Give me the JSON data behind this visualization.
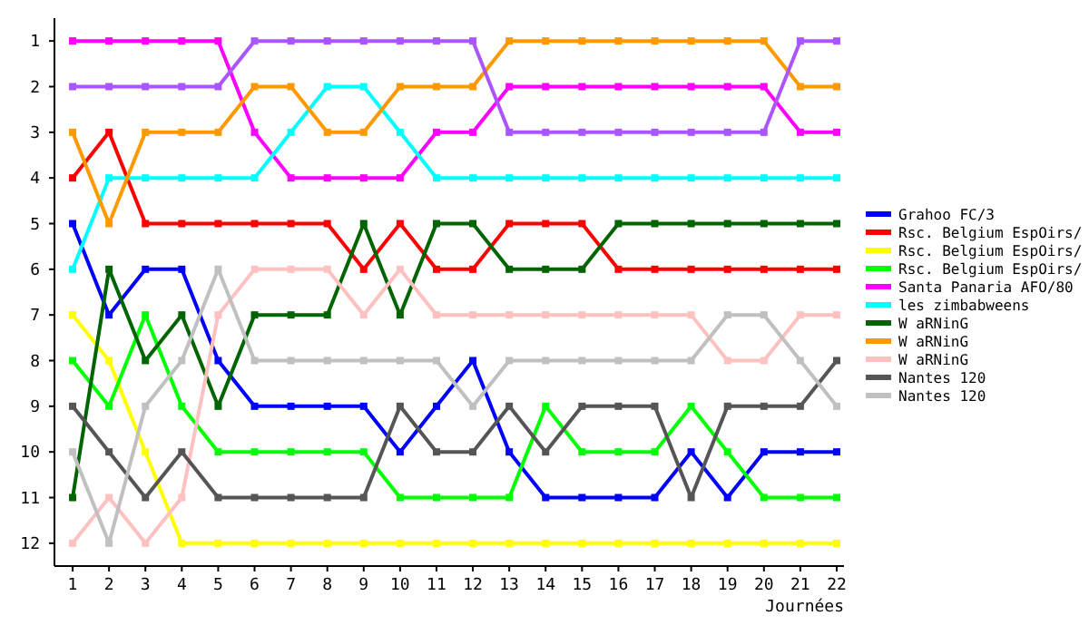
{
  "chart_data": {
    "type": "line",
    "xlabel": "Journées",
    "x": [
      1,
      2,
      3,
      4,
      5,
      6,
      7,
      8,
      9,
      10,
      11,
      12,
      13,
      14,
      15,
      16,
      17,
      18,
      19,
      20,
      21,
      22
    ],
    "xlim": [
      0.5,
      22.2
    ],
    "xticks": [
      1,
      2,
      3,
      4,
      5,
      6,
      7,
      8,
      9,
      10,
      11,
      12,
      13,
      14,
      15,
      16,
      17,
      18,
      19,
      20,
      21,
      22
    ],
    "ylim": [
      12.5,
      0.5
    ],
    "yticks": [
      1,
      2,
      3,
      4,
      5,
      6,
      7,
      8,
      9,
      10,
      11,
      12
    ],
    "grid": false,
    "legend": "right",
    "marker": "square",
    "line_style": "solid",
    "series": [
      {
        "name": "Grahoo FC/3",
        "color": "#0000ff",
        "values": [
          5,
          7,
          6,
          6,
          8,
          9,
          9,
          9,
          9,
          10,
          9,
          8,
          10,
          11,
          11,
          11,
          11,
          10,
          11,
          10,
          10,
          10
        ]
      },
      {
        "name": "Rsc. Belgium EspOirs/",
        "color": "#ff0000",
        "values": [
          4,
          3,
          5,
          5,
          5,
          5,
          5,
          5,
          6,
          5,
          6,
          6,
          5,
          5,
          5,
          6,
          6,
          6,
          6,
          6,
          6,
          6
        ]
      },
      {
        "name": "Rsc. Belgium EspOirs/",
        "color": "#ffff00",
        "values": [
          7,
          8,
          10,
          12,
          12,
          12,
          12,
          12,
          12,
          12,
          12,
          12,
          12,
          12,
          12,
          12,
          12,
          12,
          12,
          12,
          12,
          12
        ]
      },
      {
        "name": "Rsc. Belgium EspOirs/",
        "color": "#00ff00",
        "values": [
          8,
          9,
          7,
          9,
          10,
          10,
          10,
          10,
          10,
          11,
          11,
          11,
          11,
          9,
          10,
          10,
          10,
          9,
          10,
          11,
          11,
          11
        ]
      },
      {
        "name": "Santa Panaria AFO/80",
        "color": "#ff00ff",
        "values": [
          1,
          1,
          1,
          1,
          1,
          3,
          4,
          4,
          4,
          4,
          3,
          3,
          2,
          2,
          2,
          2,
          2,
          2,
          2,
          2,
          3,
          3
        ]
      },
      {
        "name": "les zimbabweens",
        "color": "#00ffff",
        "values": [
          6,
          4,
          4,
          4,
          4,
          4,
          3,
          2,
          2,
          3,
          4,
          4,
          4,
          4,
          4,
          4,
          4,
          4,
          4,
          4,
          4,
          4
        ]
      },
      {
        "name": "W aRNinG",
        "color": "#006400",
        "values": [
          11,
          6,
          8,
          7,
          9,
          7,
          7,
          7,
          5,
          7,
          5,
          5,
          6,
          6,
          6,
          5,
          5,
          5,
          5,
          5,
          5,
          5
        ]
      },
      {
        "name": "W aRNinG",
        "color": "#ff9900",
        "values": [
          3,
          5,
          3,
          3,
          3,
          2,
          2,
          3,
          3,
          2,
          2,
          2,
          1,
          1,
          1,
          1,
          1,
          1,
          1,
          1,
          2,
          2
        ]
      },
      {
        "name": "W aRNinG",
        "color": "#ffc0c0",
        "values": [
          12,
          11,
          12,
          11,
          7,
          6,
          6,
          6,
          7,
          6,
          7,
          7,
          7,
          7,
          7,
          7,
          7,
          7,
          8,
          8,
          7,
          7
        ]
      },
      {
        "color": "#aa55ff",
        "values": [
          2,
          2,
          2,
          2,
          2,
          1,
          1,
          1,
          1,
          1,
          1,
          1,
          3,
          3,
          3,
          3,
          3,
          3,
          3,
          3,
          1,
          1
        ]
      },
      {
        "name": "Nantes 120",
        "color": "#555555",
        "values": [
          9,
          10,
          11,
          10,
          11,
          11,
          11,
          11,
          11,
          9,
          10,
          10,
          9,
          10,
          9,
          9,
          9,
          11,
          9,
          9,
          9,
          8
        ]
      },
      {
        "name": "Nantes 120",
        "color": "#c0c0c0",
        "values": [
          10,
          12,
          9,
          8,
          6,
          8,
          8,
          8,
          8,
          8,
          8,
          9,
          8,
          8,
          8,
          8,
          8,
          8,
          7,
          7,
          8,
          9
        ]
      }
    ]
  }
}
